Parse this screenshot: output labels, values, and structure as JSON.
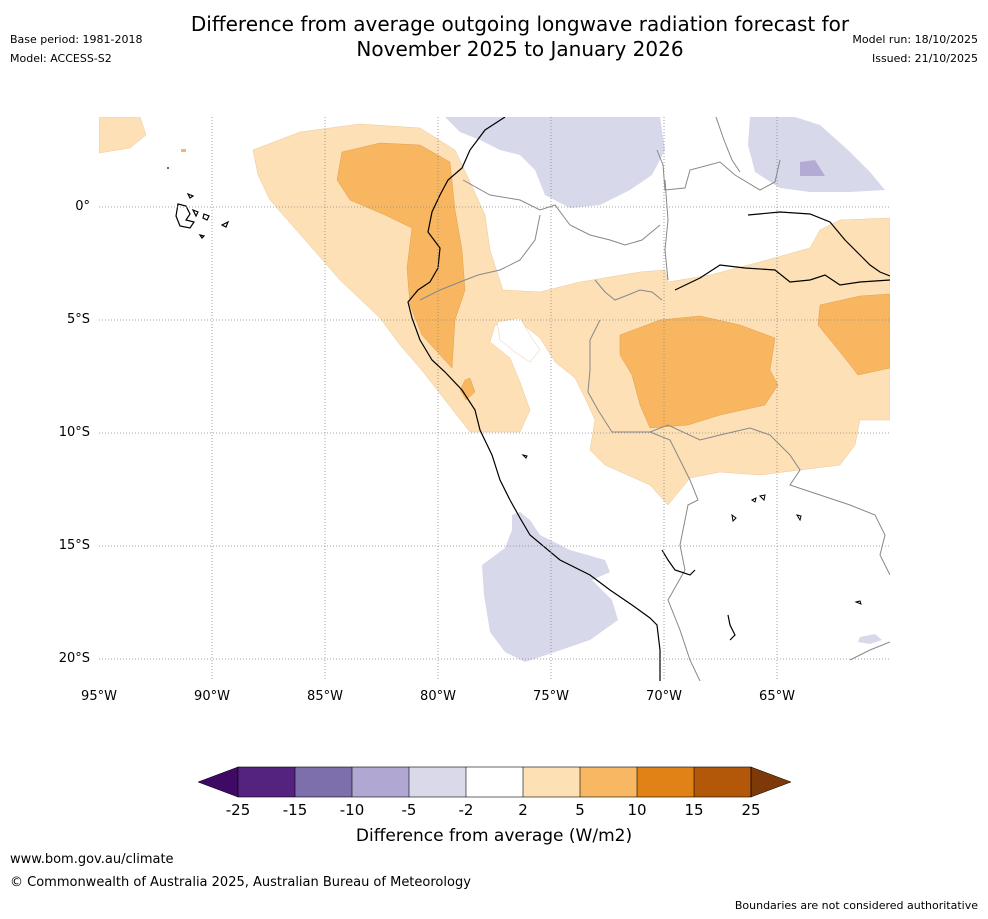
{
  "title": {
    "line1": "Difference from average outgoing longwave radiation forecast for",
    "line2": "November 2025 to January 2026"
  },
  "meta": {
    "base_period": "Base period: 1981-2018",
    "model": "Model: ACCESS-S2",
    "model_run": "Model run: 18/10/2025",
    "issued": "Issued: 21/10/2025"
  },
  "map": {
    "lat_labels": [
      "0°",
      "5°S",
      "10°S",
      "15°S",
      "20°S"
    ],
    "lon_labels": [
      "95°W",
      "90°W",
      "85°W",
      "80°W",
      "75°W",
      "70°W",
      "65°W"
    ],
    "colors": {
      "pos_light": "#fde0b6",
      "pos_mid": "#f8b660",
      "neg_light": "#d7d8ea",
      "neg_mid": "#b3abd4",
      "coast": "#000000",
      "border": "#888888"
    }
  },
  "colorbar": {
    "tick_labels": [
      "-25",
      "-15",
      "-10",
      "-5",
      "-2",
      "2",
      "5",
      "10",
      "15",
      "25"
    ],
    "colors": [
      "#3f0a66",
      "#53237f",
      "#7d6eac",
      "#b0a8d2",
      "#d9d9ea",
      "#ffffff",
      "#fde0b4",
      "#f8b863",
      "#e08215",
      "#b35808",
      "#7d3a08"
    ],
    "title": "Difference from average (W/m2)"
  },
  "footer": {
    "website": "www.bom.gov.au/climate",
    "copyright": "© Commonwealth of Australia 2025, Australian Bureau of Meteorology",
    "disclaimer": "Boundaries are not considered authoritative"
  }
}
